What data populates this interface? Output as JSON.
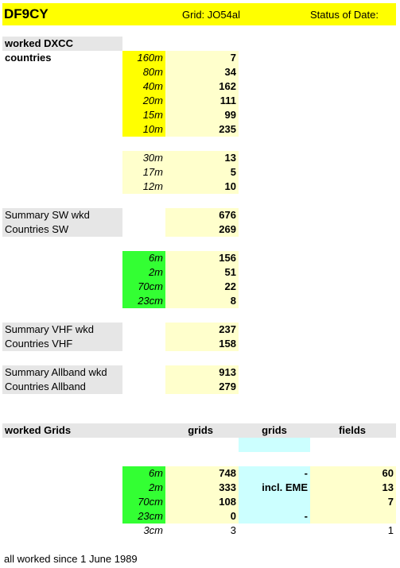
{
  "header": {
    "callsign": "DF9CY",
    "grid": "Grid: JO54al",
    "status": "Status of Date:"
  },
  "dxcc": {
    "title": "worked DXCC countries",
    "hf_bands": [
      {
        "band": "160m",
        "count": "7"
      },
      {
        "band": "80m",
        "count": "34"
      },
      {
        "band": "40m",
        "count": "162"
      },
      {
        "band": "20m",
        "count": "111"
      },
      {
        "band": "15m",
        "count": "99"
      },
      {
        "band": "10m",
        "count": "235"
      }
    ],
    "warc_bands": [
      {
        "band": "30m",
        "count": "13"
      },
      {
        "band": "17m",
        "count": "5"
      },
      {
        "band": "12m",
        "count": "10"
      }
    ],
    "sw_summary": [
      {
        "label": "Summary SW wkd",
        "value": "676"
      },
      {
        "label": "Countries SW",
        "value": "269"
      }
    ],
    "vhf_bands": [
      {
        "band": "6m",
        "count": "156"
      },
      {
        "band": "2m",
        "count": "51"
      },
      {
        "band": "70cm",
        "count": "22"
      },
      {
        "band": "23cm",
        "count": "8"
      }
    ],
    "vhf_summary": [
      {
        "label": "Summary VHF wkd",
        "value": "237"
      },
      {
        "label": "Countries VHF",
        "value": "158"
      }
    ],
    "allband_summary": [
      {
        "label": "Summary Allband wkd",
        "value": "913"
      },
      {
        "label": "Countries Allband",
        "value": "279"
      }
    ]
  },
  "grids": {
    "title": "worked Grids",
    "col_grids": "grids",
    "col_grids2": "grids",
    "col_fields": "fields",
    "rows": [
      {
        "band": "6m",
        "grids": "748",
        "grids2": "-",
        "fields": "60"
      },
      {
        "band": "2m",
        "grids": "333",
        "grids2": "incl. EME",
        "fields": "13"
      },
      {
        "band": "70cm",
        "grids": "108",
        "grids2": "",
        "fields": "7"
      },
      {
        "band": "23cm",
        "grids": "0",
        "grids2": "-",
        "fields": ""
      },
      {
        "band": "3cm",
        "grids": "3",
        "grids2": "",
        "fields": "1"
      }
    ]
  },
  "footer": {
    "note": "all worked since 1 June 1989"
  }
}
